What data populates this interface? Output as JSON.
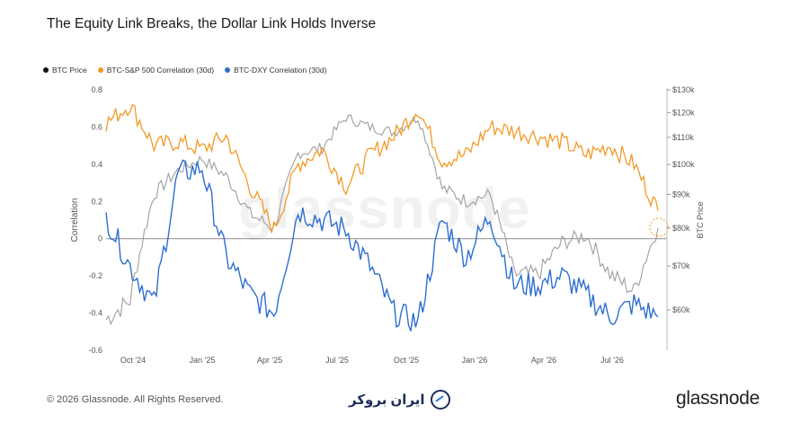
{
  "title": "The Equity Link Breaks, the Dollar Link Holds Inverse",
  "footer": {
    "copyright": "© 2026 Glassnode. All Rights Reserved.",
    "brand": "glassnode",
    "partner": "ایران بروکر"
  },
  "watermark": "glassnode",
  "colors": {
    "btc": "#9e9e9e",
    "sp500": "#f29a26",
    "dxy": "#2d6fd2"
  },
  "chart_data": {
    "type": "line",
    "legend": [
      {
        "name": "BTC Price",
        "color": "#111111"
      },
      {
        "name": "BTC-S&P 500 Correlation (30d)",
        "color": "#f29a26"
      },
      {
        "name": "BTC-DXY Correlation (30d)",
        "color": "#2d6fd2"
      }
    ],
    "legend_position": "top-left",
    "ylabel_left": "Correlation",
    "ylabel_right": "BTC Price",
    "ylim_left": [
      -0.6,
      0.8
    ],
    "left_ticks": [
      "0.8",
      "0.6",
      "0.4",
      "0.2",
      "0",
      "-0.2",
      "-0.4",
      "-0.6"
    ],
    "right_ticks": [
      "$130k",
      "$120k",
      "$110k",
      "$100k",
      "$90k",
      "$80k",
      "$70k",
      "$60k"
    ],
    "x_ticks": [
      "Oct '24",
      "Jan '25",
      "Apr '25",
      "Jul '25",
      "Oct '25",
      "Jan '26",
      "Apr '26",
      "Jul '26"
    ],
    "x_dates": [
      "2024-09",
      "2024-10",
      "2024-11",
      "2024-12",
      "2025-01",
      "2025-02",
      "2025-03",
      "2025-04",
      "2025-05",
      "2025-06",
      "2025-07",
      "2025-08",
      "2025-09",
      "2025-10",
      "2025-11",
      "2025-12",
      "2026-01",
      "2026-02",
      "2026-03",
      "2026-04",
      "2026-05",
      "2026-06",
      "2026-07",
      "2026-08"
    ],
    "series": [
      {
        "name": "BTC Price",
        "axis": "right",
        "values": [
          58,
          62,
          90,
          98,
          102,
          96,
          84,
          80,
          104,
          106,
          118,
          114,
          112,
          118,
          92,
          88,
          90,
          68,
          68,
          76,
          78,
          68,
          64,
          80
        ]
      },
      {
        "name": "BTC-S&P 500 Correlation (30d)",
        "axis": "left",
        "values": [
          0.62,
          0.72,
          0.5,
          0.52,
          0.48,
          0.55,
          0.28,
          0.05,
          0.4,
          0.48,
          0.28,
          0.45,
          0.55,
          0.7,
          0.42,
          0.45,
          0.6,
          0.58,
          0.55,
          0.52,
          0.45,
          0.5,
          0.4,
          0.15
        ]
      },
      {
        "name": "BTC-DXY Correlation (30d)",
        "axis": "left",
        "values": [
          0.12,
          -0.15,
          -0.35,
          0.35,
          0.38,
          -0.1,
          -0.3,
          -0.4,
          0.15,
          0.1,
          0.05,
          -0.15,
          -0.4,
          -0.45,
          0.1,
          -0.1,
          0.12,
          -0.25,
          -0.25,
          -0.2,
          -0.3,
          -0.42,
          -0.35,
          -0.42
        ]
      }
    ]
  }
}
